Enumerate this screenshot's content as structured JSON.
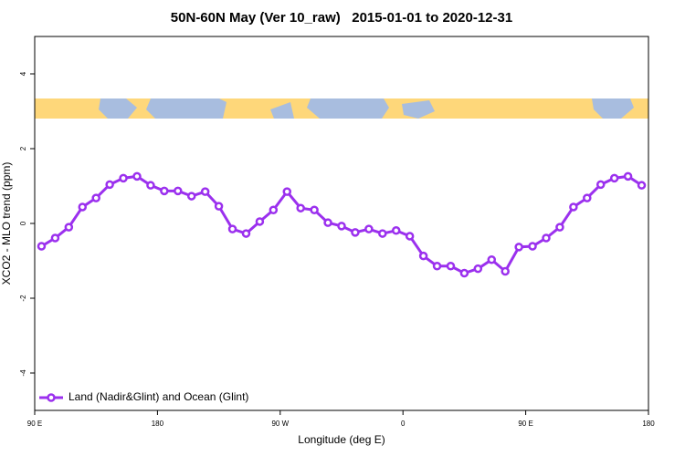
{
  "chart_data": {
    "type": "line",
    "title": "50N-60N May (Ver 10_raw)   2015-01-01 to 2020-12-31",
    "x_label": "Longitude (deg E)",
    "y_label": "XCO2 - MLO trend (ppm)",
    "x": [
      95,
      105,
      115,
      125,
      135,
      145,
      155,
      165,
      175,
      185,
      195,
      205,
      215,
      225,
      235,
      245,
      255,
      265,
      275,
      285,
      295,
      305,
      315,
      325,
      335,
      345,
      355,
      365,
      375,
      385,
      395,
      405,
      415,
      425,
      435,
      445,
      455,
      465,
      475,
      485,
      495,
      505,
      515,
      525,
      535
    ],
    "series": [
      {
        "name": "Land (Nadir&Glint) and Ocean (Glint)",
        "color": "#9b30ee",
        "values": [
          -0.61,
          -0.39,
          -0.1,
          0.44,
          0.68,
          1.04,
          1.21,
          1.26,
          1.02,
          0.87,
          0.87,
          0.73,
          0.85,
          0.46,
          -0.15,
          -0.27,
          0.05,
          0.36,
          0.85,
          0.41,
          0.36,
          0.02,
          -0.07,
          -0.24,
          -0.15,
          -0.27,
          -0.19,
          -0.34,
          -0.87,
          -1.14,
          -1.14,
          -1.33,
          -1.21,
          -0.97,
          -1.28,
          -0.63,
          -0.61,
          -0.39,
          -0.1,
          0.44,
          0.68,
          1.04,
          1.21,
          1.26,
          1.02
        ]
      }
    ],
    "xlim": [
      90,
      540
    ],
    "xticks": [
      {
        "value": 90,
        "label": "90 E"
      },
      180,
      {
        "value": 270,
        "label": "90 W"
      },
      {
        "value": 360,
        "label": "0"
      },
      {
        "value": 450,
        "label": "90 E"
      },
      {
        "value": 540,
        "label": "180"
      }
    ],
    "ylim": [
      -5,
      5
    ],
    "yticks": [
      -4,
      -2,
      0,
      2,
      4
    ],
    "legend": "bottom-left"
  }
}
